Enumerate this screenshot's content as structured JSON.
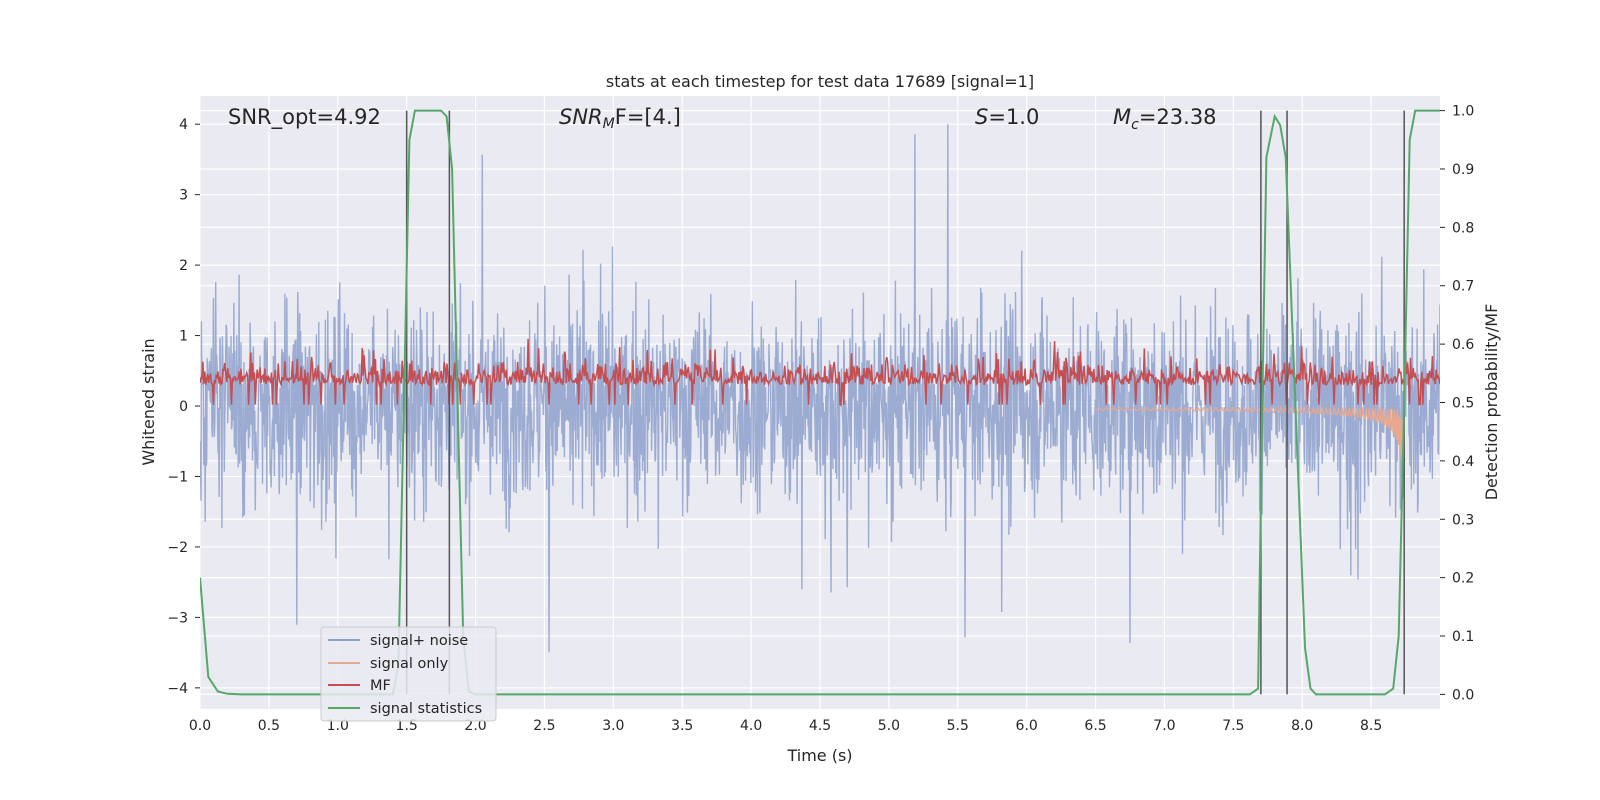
{
  "chart_data": {
    "type": "line",
    "title": "stats at each timestep for test data 17689 [signal=1]",
    "xlabel": "Time (s)",
    "ylabel": "Whitened strain",
    "y2label": "Detection probability/MF",
    "xlim": [
      0.0,
      9.0
    ],
    "ylim": [
      -4.3,
      4.4
    ],
    "y2lim": [
      -0.025,
      1.025
    ],
    "xticks": [
      "0.0",
      "0.5",
      "1.0",
      "1.5",
      "2.0",
      "2.5",
      "3.0",
      "3.5",
      "4.0",
      "4.5",
      "5.0",
      "5.5",
      "6.0",
      "6.5",
      "7.0",
      "7.5",
      "8.0",
      "8.5"
    ],
    "yticks": [
      "4",
      "3",
      "2",
      "1",
      "0",
      "−1",
      "−2",
      "−3",
      "−4"
    ],
    "y2ticks": [
      "1.0",
      "0.9",
      "0.8",
      "0.7",
      "0.6",
      "0.5",
      "0.4",
      "0.3",
      "0.2",
      "0.1",
      "0.0"
    ],
    "grid": true,
    "legend_position": "lower-left",
    "annotations": {
      "snr_opt": "SNR_opt=4.92",
      "snr_mf_base": "SNR",
      "snr_mf_sub": "M",
      "snr_mf_rest": "F=[4.]",
      "s_var": "S",
      "s_rest": "=1.0",
      "mc_var": "M",
      "mc_sub": "c",
      "mc_rest": "=23.38"
    },
    "series": [
      {
        "name": "signal+ noise",
        "color": "#8da0cb",
        "axis": "left",
        "description": "whitened noisy strain, roughly between -3.7 and 4.0"
      },
      {
        "name": "signal only",
        "color": "#e8a990",
        "axis": "left",
        "description": "chirp waveform growing near 8.0-8.8 s, down to about -1.0"
      },
      {
        "name": "MF",
        "color": "#c44e52",
        "axis": "left",
        "description": "matched filter output, roughly 0 to 1.0"
      },
      {
        "name": "signal statistics",
        "color": "#55a868",
        "axis": "right",
        "x": [
          0.0,
          0.06,
          0.13,
          0.2,
          0.3,
          0.6,
          1.0,
          1.3,
          1.4,
          1.44,
          1.48,
          1.52,
          1.56,
          1.75,
          1.79,
          1.83,
          1.87,
          1.91,
          1.95,
          2.0,
          2.2,
          3.0,
          4.0,
          5.0,
          6.0,
          7.0,
          7.5,
          7.62,
          7.68,
          7.71,
          7.74,
          7.8,
          7.84,
          7.88,
          7.95,
          8.02,
          8.06,
          8.1,
          8.3,
          8.6,
          8.66,
          8.7,
          8.74,
          8.78,
          8.82,
          8.9,
          9.0
        ],
        "y": [
          0.2,
          0.03,
          0.005,
          0.001,
          0.0,
          0.0,
          0.0,
          0.0,
          0.0,
          0.05,
          0.5,
          0.95,
          1.0,
          1.0,
          0.99,
          0.9,
          0.5,
          0.1,
          0.005,
          0.0,
          0.0,
          0.0,
          0.0,
          0.0,
          0.0,
          0.0,
          0.0,
          0.0,
          0.01,
          0.5,
          0.92,
          0.99,
          0.975,
          0.92,
          0.5,
          0.08,
          0.01,
          0.0,
          0.0,
          0.0,
          0.01,
          0.1,
          0.5,
          0.95,
          1.0,
          1.0,
          1.0
        ]
      }
    ],
    "vertical_markers": [
      1.5,
      1.81,
      7.7,
      7.89,
      8.74
    ],
    "legend": [
      "signal+ noise",
      "signal only",
      "MF",
      "signal statistics"
    ]
  }
}
